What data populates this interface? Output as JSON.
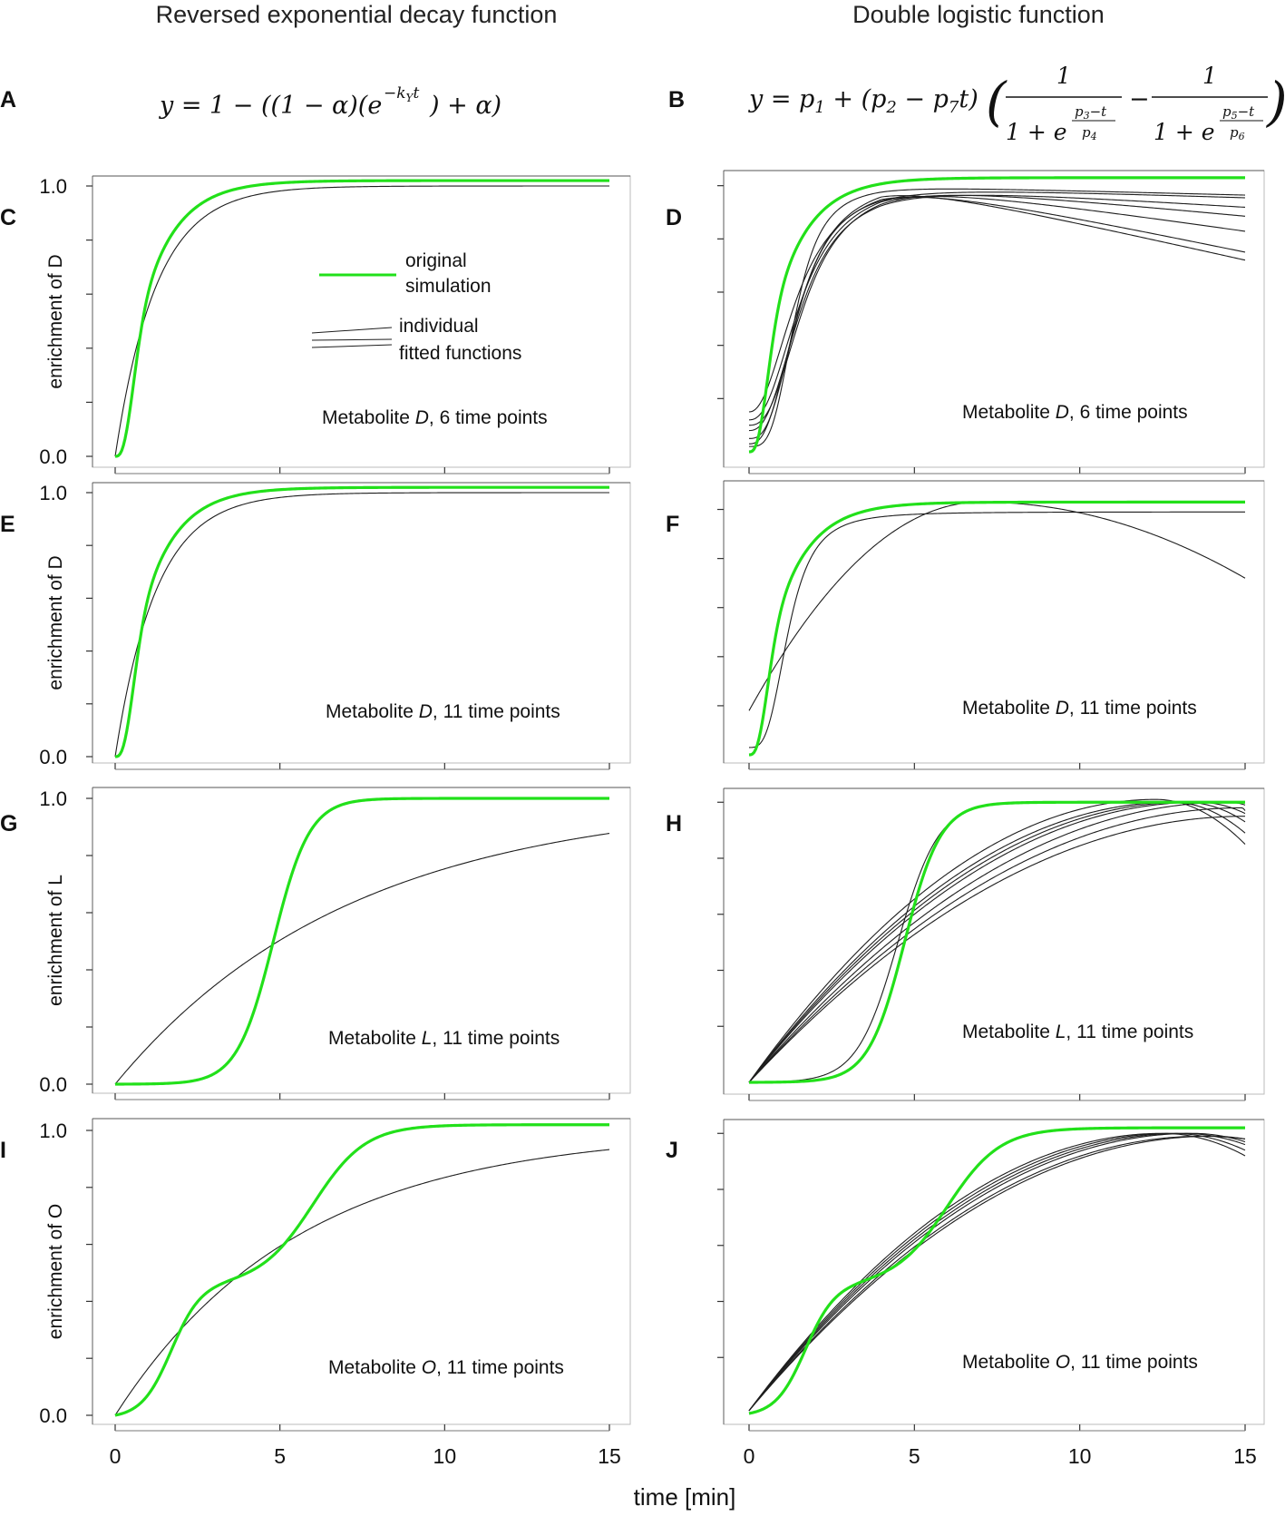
{
  "figure": {
    "col_left_title": "Reversed exponential decay function",
    "col_right_title": "Double logistic function",
    "x_axis_label": "time [min]",
    "formula_a": {
      "label": "A",
      "text": "y = 1 − ((1 − α)(e^(−k_Y t)) + α)"
    },
    "formula_b": {
      "label": "B",
      "text": "y = p₁ + (p₂ − p₇t)(1/(1 + e^((p₃−t)/p₄)) − 1/(1 + e^((p₅−t)/p₆)))"
    },
    "legend": {
      "green_label_1": "original",
      "green_label_2": "simulation",
      "black_label_1": "individual",
      "black_label_2": "fitted functions"
    },
    "colors": {
      "simulation": "#22e01a",
      "fit": "#1e1e1e",
      "frame": "#777777"
    }
  },
  "chart_data": [
    {
      "id": "C",
      "type": "line",
      "panel_label": "C",
      "column": "left",
      "annotation_prefix": "Metabolite ",
      "metabolite": "D",
      "annotation_suffix": ", 6 time points",
      "ylabel": "enrichment of D",
      "ytick_labels": [
        "1.0",
        "0.0"
      ],
      "xlim": [
        0,
        15
      ],
      "ylim": [
        0,
        1
      ],
      "xticks": [
        0,
        5,
        10,
        15
      ],
      "yticks": [
        0,
        0.2,
        0.4,
        0.6,
        0.8,
        1.0
      ],
      "series": [
        {
          "name": "original simulation",
          "model": "sigmoid_exp",
          "k": 0.95,
          "d": 0.55,
          "topY": 1.02
        },
        {
          "name": "fitted function",
          "model": "exp",
          "k": 0.8,
          "topY": 1.0
        }
      ]
    },
    {
      "id": "D",
      "type": "line",
      "panel_label": "D",
      "column": "right",
      "annotation_prefix": "Metabolite ",
      "metabolite": "D",
      "annotation_suffix": ", 6 time points",
      "ylabel": "",
      "ytick_labels": [],
      "xlim": [
        0,
        15
      ],
      "ylim": [
        0,
        1.05
      ],
      "xticks": [
        0,
        5,
        10,
        15
      ],
      "yticks": [
        0.2,
        0.4,
        0.6,
        0.8,
        1.0
      ],
      "series": [
        {
          "name": "original simulation",
          "model": "sigmoid_exp",
          "k": 0.95,
          "d": 0.55,
          "topY": 1.03
        },
        {
          "name": "fitted function",
          "model": "hill",
          "y0": 0.15,
          "t50": 1.5,
          "n": 2.2,
          "peak": 1.04,
          "slope": -0.0065
        },
        {
          "name": "fitted function",
          "model": "hill",
          "y0": 0.12,
          "t50": 1.6,
          "n": 2.4,
          "peak": 1.03,
          "slope": -0.0045
        },
        {
          "name": "fitted function",
          "model": "hill",
          "y0": 0.1,
          "t50": 1.7,
          "n": 2.6,
          "peak": 1.02,
          "slope": -0.003
        },
        {
          "name": "fitted function",
          "model": "hill",
          "y0": 0.08,
          "t50": 1.6,
          "n": 2.5,
          "peak": 1.01,
          "slope": -0.002
        },
        {
          "name": "fitted function",
          "model": "hill",
          "y0": 0.05,
          "t50": 1.5,
          "n": 2.8,
          "peak": 1.0,
          "slope": -0.001
        },
        {
          "name": "fitted function",
          "model": "hill",
          "y0": 0.02,
          "t50": 1.4,
          "n": 3.5,
          "peak": 1.0,
          "slope": -0.0008
        },
        {
          "name": "fitted function",
          "model": "hill",
          "y0": 0.03,
          "t50": 1.5,
          "n": 2.6,
          "peak": 1.03,
          "slope": -0.007
        }
      ]
    },
    {
      "id": "E",
      "type": "line",
      "panel_label": "E",
      "column": "left",
      "annotation_prefix": "Metabolite ",
      "metabolite": "D",
      "annotation_suffix": ", 11 time points",
      "ylabel": "enrichment of D",
      "ytick_labels": [
        "1.0",
        "0.0"
      ],
      "xlim": [
        0,
        15
      ],
      "ylim": [
        0,
        1
      ],
      "xticks": [
        0,
        5,
        10,
        15
      ],
      "yticks": [
        0,
        0.2,
        0.4,
        0.6,
        0.8,
        1.0
      ],
      "series": [
        {
          "name": "original simulation",
          "model": "sigmoid_exp",
          "k": 0.95,
          "d": 0.55,
          "topY": 1.02
        },
        {
          "name": "fitted function",
          "model": "exp",
          "k": 0.8,
          "topY": 1.0
        }
      ]
    },
    {
      "id": "F",
      "type": "line",
      "panel_label": "F",
      "column": "right",
      "annotation_prefix": "Metabolite ",
      "metabolite": "D",
      "annotation_suffix": ", 11 time points",
      "ylabel": "",
      "ytick_labels": [],
      "xlim": [
        0,
        15
      ],
      "ylim": [
        0,
        1.05
      ],
      "xticks": [
        0,
        5,
        10,
        15
      ],
      "yticks": [
        0.2,
        0.4,
        0.6,
        0.8,
        1.0
      ],
      "series": [
        {
          "name": "original simulation",
          "model": "sigmoid_exp",
          "k": 0.95,
          "d": 0.55,
          "topY": 1.03
        },
        {
          "name": "fitted function",
          "model": "hill",
          "y0": 0.03,
          "t50": 1.2,
          "n": 3.2,
          "peak": 0.99,
          "slope": 0
        },
        {
          "name": "fitted function",
          "model": "peak",
          "y0": 0.18,
          "tpeak": 7.0,
          "ypeak": 1.03,
          "yend": 0.72
        }
      ]
    },
    {
      "id": "G",
      "type": "line",
      "panel_label": "G",
      "column": "left",
      "annotation_prefix": "Metabolite ",
      "metabolite": "L",
      "annotation_suffix": ", 11 time points",
      "ylabel": "enrichment of L",
      "ytick_labels": [
        "1.0",
        "0.0"
      ],
      "xlim": [
        0,
        15
      ],
      "ylim": [
        0,
        1
      ],
      "xticks": [
        0,
        5,
        10,
        15
      ],
      "yticks": [
        0,
        0.2,
        0.4,
        0.6,
        0.8,
        1.0
      ],
      "series": [
        {
          "name": "original simulation",
          "model": "logistic",
          "t50": 4.8,
          "s": 0.55,
          "topY": 1.0
        },
        {
          "name": "fitted function",
          "model": "exp",
          "k": 0.14,
          "topY": 1.0
        }
      ]
    },
    {
      "id": "H",
      "type": "line",
      "panel_label": "H",
      "column": "right",
      "annotation_prefix": "Metabolite ",
      "metabolite": "L",
      "annotation_suffix": ", 11 time points",
      "ylabel": "",
      "ytick_labels": [],
      "xlim": [
        0,
        15
      ],
      "ylim": [
        0,
        1.03
      ],
      "xticks": [
        0,
        5,
        10,
        15
      ],
      "yticks": [
        0.2,
        0.4,
        0.6,
        0.8,
        1.0
      ],
      "series": [
        {
          "name": "original simulation",
          "model": "logistic",
          "t50": 4.7,
          "s": 0.55,
          "topY": 1.0
        },
        {
          "name": "fitted function",
          "model": "logistic",
          "t50": 4.5,
          "s": 0.62,
          "topY": 1.0
        },
        {
          "name": "fitted function",
          "model": "peak",
          "y0": 0,
          "tpeak": 12.3,
          "ypeak": 1.01,
          "yend": 0.85
        },
        {
          "name": "fitted function",
          "model": "peak",
          "y0": 0,
          "tpeak": 12.8,
          "ypeak": 1.0,
          "yend": 0.89
        },
        {
          "name": "fitted function",
          "model": "peak",
          "y0": 0,
          "tpeak": 13.2,
          "ypeak": 1.0,
          "yend": 0.93
        },
        {
          "name": "fitted function",
          "model": "peak",
          "y0": 0,
          "tpeak": 13.6,
          "ypeak": 1.0,
          "yend": 0.96
        },
        {
          "name": "fitted function",
          "model": "peak",
          "y0": 0,
          "tpeak": 14.5,
          "ypeak": 1.0,
          "yend": 0.99
        },
        {
          "name": "fitted function",
          "model": "peak",
          "y0": 0,
          "tpeak": 14.9,
          "ypeak": 0.98,
          "yend": 0.97
        },
        {
          "name": "fitted function",
          "model": "peak",
          "y0": 0,
          "tpeak": 15,
          "ypeak": 0.95,
          "yend": 0.95
        }
      ]
    },
    {
      "id": "I",
      "type": "line",
      "panel_label": "I",
      "column": "left",
      "annotation_prefix": "Metabolite ",
      "metabolite": "O",
      "annotation_suffix": ", 11 time points",
      "ylabel": "enrichment of O",
      "ytick_labels": [
        "1.0",
        "0.0"
      ],
      "xlim": [
        0,
        15
      ],
      "ylim": [
        0,
        1
      ],
      "xticks": [
        0,
        5,
        10,
        15
      ],
      "yticks": [
        0,
        0.2,
        0.4,
        0.6,
        0.8,
        1.0
      ],
      "series": [
        {
          "name": "original simulation",
          "model": "double",
          "t1": 1.7,
          "s1": 0.45,
          "a1": 0.46,
          "t2": 6.0,
          "s2": 0.8,
          "a2": 0.56
        },
        {
          "name": "fitted function",
          "model": "exp",
          "k": 0.18,
          "topY": 1.0
        }
      ]
    },
    {
      "id": "J",
      "type": "line",
      "panel_label": "J",
      "column": "right",
      "annotation_prefix": "Metabolite ",
      "metabolite": "O",
      "annotation_suffix": ", 11 time points",
      "ylabel": "",
      "ytick_labels": [],
      "xlim": [
        0,
        15
      ],
      "ylim": [
        0,
        1.03
      ],
      "xticks": [
        0,
        5,
        10,
        15
      ],
      "yticks": [
        0.2,
        0.4,
        0.6,
        0.8,
        1.0
      ],
      "series": [
        {
          "name": "original simulation",
          "model": "double",
          "t1": 1.7,
          "s1": 0.45,
          "a1": 0.46,
          "t2": 6.0,
          "s2": 0.8,
          "a2": 0.56
        },
        {
          "name": "fitted function",
          "model": "peak",
          "y0": 0.01,
          "tpeak": 12.5,
          "ypeak": 1.0,
          "yend": 0.92
        },
        {
          "name": "fitted function",
          "model": "peak",
          "y0": 0.01,
          "tpeak": 12.8,
          "ypeak": 1.0,
          "yend": 0.94
        },
        {
          "name": "fitted function",
          "model": "peak",
          "y0": 0.01,
          "tpeak": 13.1,
          "ypeak": 1.0,
          "yend": 0.96
        },
        {
          "name": "fitted function",
          "model": "peak",
          "y0": 0.01,
          "tpeak": 13.4,
          "ypeak": 1.0,
          "yend": 0.97
        },
        {
          "name": "fitted function",
          "model": "peak",
          "y0": 0.01,
          "tpeak": 13.7,
          "ypeak": 0.99,
          "yend": 0.98
        },
        {
          "name": "fitted function",
          "model": "peak",
          "y0": 0.01,
          "tpeak": 14.0,
          "ypeak": 0.99,
          "yend": 0.98
        }
      ]
    }
  ]
}
